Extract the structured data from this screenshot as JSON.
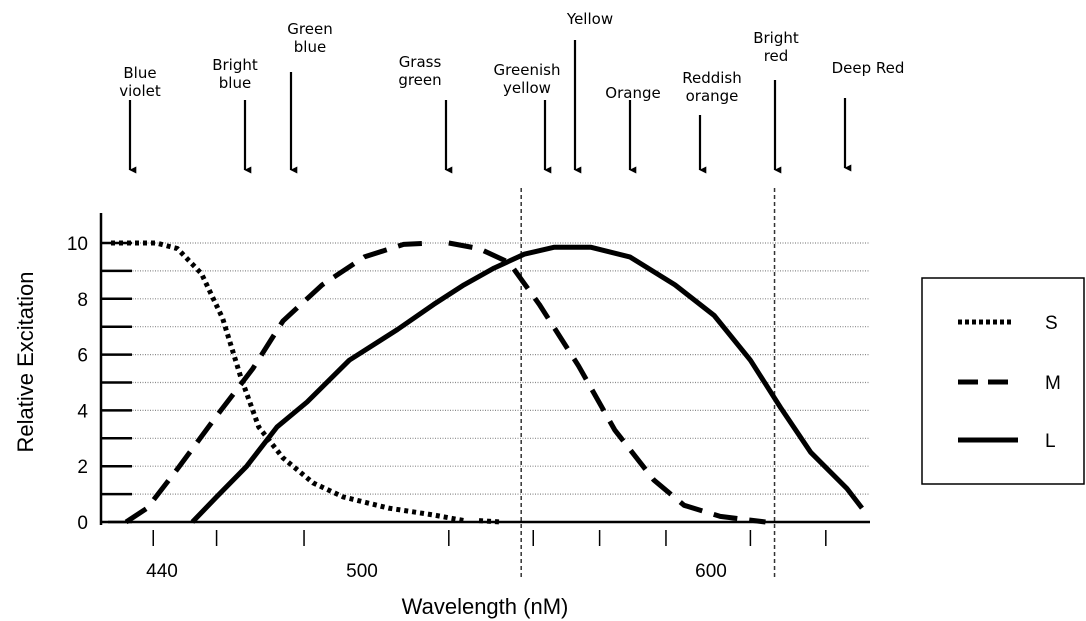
{
  "chart_data": {
    "type": "line",
    "title": "",
    "xlabel": "Wavelength (nM)",
    "ylabel": "Relative Excitation",
    "xlim": [
      405,
      665
    ],
    "ylim": [
      0,
      10.5
    ],
    "x_ticks": [
      440,
      500,
      600
    ],
    "y_ticks": [
      0,
      2,
      4,
      6,
      8,
      10
    ],
    "grid": true,
    "legend_position": "right",
    "series": [
      {
        "name": "S",
        "style": "dotted",
        "points": [
          [
            413,
            10
          ],
          [
            420,
            10
          ],
          [
            428,
            10
          ],
          [
            435,
            9.8
          ],
          [
            443,
            8.9
          ],
          [
            450,
            7.3
          ],
          [
            456,
            5.2
          ],
          [
            462,
            3.4
          ],
          [
            470,
            2.3
          ],
          [
            480,
            1.4
          ],
          [
            490,
            0.9
          ],
          [
            505,
            0.5
          ],
          [
            520,
            0.25
          ],
          [
            530,
            0.05
          ]
        ],
        "points_b": [
          [
            535,
            0.05
          ],
          [
            542,
            0
          ]
        ]
      },
      {
        "name": "M",
        "style": "dashed",
        "points": [
          [
            418,
            0
          ],
          [
            425,
            0.5
          ],
          [
            435,
            1.9
          ],
          [
            448,
            3.8
          ],
          [
            460,
            5.5
          ],
          [
            470,
            7.2
          ],
          [
            483,
            8.5
          ],
          [
            497,
            9.5
          ],
          [
            510,
            9.95
          ],
          [
            520,
            10
          ]
        ],
        "points_b": [
          [
            525,
            10
          ],
          [
            535,
            9.8
          ],
          [
            545,
            9.3
          ],
          [
            555,
            7.8
          ],
          [
            568,
            5.6
          ],
          [
            580,
            3.3
          ],
          [
            593,
            1.5
          ],
          [
            603,
            0.6
          ],
          [
            615,
            0.2
          ],
          [
            630,
            0
          ]
        ]
      },
      {
        "name": "L",
        "style": "solid",
        "points": [
          [
            440,
            0
          ],
          [
            448,
            0.9
          ],
          [
            458,
            2
          ],
          [
            468,
            3.4
          ],
          [
            478,
            4.3
          ],
          [
            492,
            5.8
          ],
          [
            508,
            6.9
          ],
          [
            520,
            7.8
          ],
          [
            530,
            8.5
          ],
          [
            540,
            9.1
          ],
          [
            550,
            9.6
          ],
          [
            560,
            9.85
          ],
          [
            572,
            9.85
          ],
          [
            585,
            9.5
          ],
          [
            600,
            8.5
          ],
          [
            613,
            7.4
          ],
          [
            625,
            5.8
          ],
          [
            635,
            4.1
          ],
          [
            645,
            2.5
          ],
          [
            657,
            1.2
          ],
          [
            662,
            0.5
          ]
        ]
      }
    ],
    "reference_lines_x": [
      549,
      633
    ],
    "color_labels": [
      {
        "text": "Blue violet",
        "x": 430
      },
      {
        "text": "Bright blue",
        "x": 460
      },
      {
        "text": "Green blue",
        "x": 477
      },
      {
        "text": "Grass green",
        "x": 527
      },
      {
        "text": "Greenish yellow",
        "x": 558
      },
      {
        "text": "Yellow",
        "x": 568
      },
      {
        "text": "Orange",
        "x": 585
      },
      {
        "text": "Reddish orange",
        "x": 603
      },
      {
        "text": "Bright red",
        "x": 623
      },
      {
        "text": "Deep Red",
        "x": 642
      }
    ]
  }
}
